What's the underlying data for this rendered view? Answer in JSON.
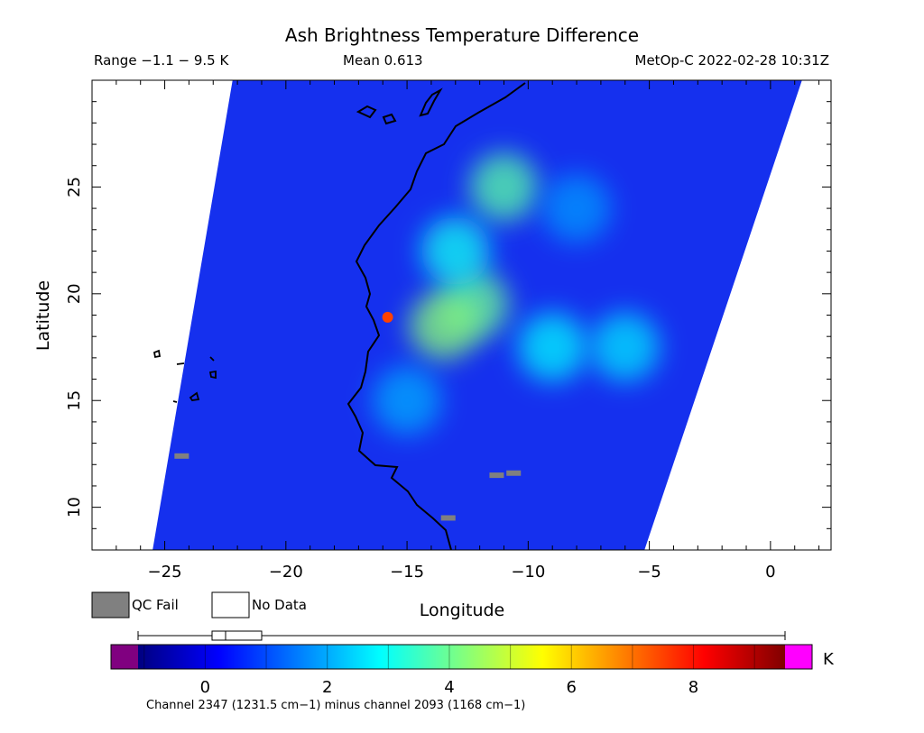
{
  "header": {
    "title": "Ash Brightness Temperature Difference",
    "range_text": "Range −1.1 − 9.5 K",
    "mean_text": "Mean 0.613",
    "satellite_text": "MetOp-C 2022-02-28 10:31Z"
  },
  "legend": {
    "qc_fail_label": "QC Fail",
    "no_data_label": "No Data",
    "qc_fail_color": "#808080",
    "no_data_color": "#ffffff"
  },
  "colorbar": {
    "unit": "K",
    "min": -1.1,
    "max": 9.5,
    "ticks": [
      "0",
      "2",
      "4",
      "6",
      "8"
    ],
    "under_color": "#800080",
    "over_color": "#ff00ff",
    "caption": "Channel 2347 (1231.5 cm−1) minus channel 2093 (1168 cm−1)",
    "stops": [
      "#000080",
      "#0000ff",
      "#0080ff",
      "#00ffff",
      "#80ff80",
      "#ffff00",
      "#ff8000",
      "#ff0000",
      "#800000"
    ]
  },
  "chart_data": {
    "type": "heatmap",
    "title": "Ash Brightness Temperature Difference",
    "xlabel": "Longitude",
    "ylabel": "Latitude",
    "xlim": [
      -28,
      2.5
    ],
    "ylim": [
      8,
      30
    ],
    "x_ticks": [
      "−25",
      "−20",
      "−15",
      "−10",
      "−5",
      "0"
    ],
    "y_ticks": [
      "10",
      "15",
      "20",
      "25"
    ],
    "value_range": [
      -1.1,
      9.5
    ],
    "mean": 0.613,
    "units": "K",
    "swath_corners": [
      [
        -22.2,
        30
      ],
      [
        1.3,
        30
      ],
      [
        -5.2,
        8
      ],
      [
        -25.5,
        8
      ]
    ],
    "regions": [
      {
        "lon": -12.2,
        "lat": 19.5,
        "value": 4.0
      },
      {
        "lon": -11,
        "lat": 25,
        "value": 3.8
      },
      {
        "lon": -13.5,
        "lat": 18.5,
        "value": 4.3
      },
      {
        "lon": -13,
        "lat": 22,
        "value": 3.0
      },
      {
        "lon": -9,
        "lat": 17.5,
        "value": 2.8
      },
      {
        "lon": -6,
        "lat": 17.5,
        "value": 2.6
      },
      {
        "lon": -8,
        "lat": 24,
        "value": 1.8
      },
      {
        "lon": -15.8,
        "lat": 18.9,
        "value": 7.5
      },
      {
        "lon": -15,
        "lat": 15,
        "value": 2.0
      }
    ],
    "qc_fail_points": [
      [
        -24.3,
        12.4
      ],
      [
        -11.3,
        11.5
      ],
      [
        -10.6,
        11.6
      ],
      [
        -13.3,
        9.5
      ]
    ]
  }
}
